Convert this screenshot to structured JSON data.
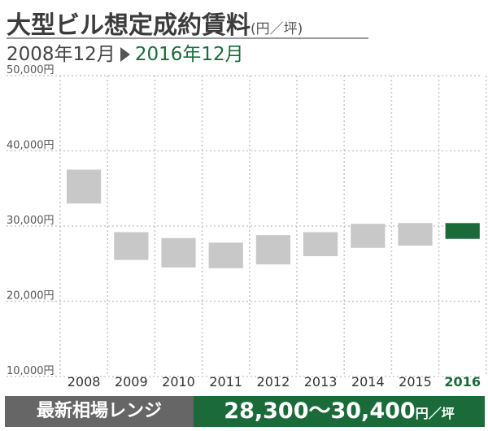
{
  "title": {
    "main": "大型ビル想定成約賃料",
    "unit": "(円／坪)"
  },
  "subtitle": {
    "from": "2008年12月",
    "to": "2016年12月"
  },
  "colors": {
    "range_box": "#c8c8c8",
    "highlight_box": "#1b6b3a",
    "highlight_label": "#1a6b3c",
    "grid": "#c9c9c9",
    "footer_left_bg": "#666666",
    "footer_right_bg": "#1b6b3a"
  },
  "chart_data": {
    "type": "bar",
    "categories": [
      "2008",
      "2009",
      "2010",
      "2011",
      "2012",
      "2013",
      "2014",
      "2015",
      "2016"
    ],
    "ranges": [
      [
        33000,
        37500
      ],
      [
        25500,
        29200
      ],
      [
        24500,
        28400
      ],
      [
        24400,
        27800
      ],
      [
        24900,
        28800
      ],
      [
        26000,
        29200
      ],
      [
        27100,
        30300
      ],
      [
        27400,
        30400
      ],
      [
        28300,
        30400
      ]
    ],
    "highlight_category": "2016",
    "y_ticks": [
      "10,000円",
      "20,000円",
      "30,000円",
      "40,000円",
      "50,000円"
    ],
    "ylim": [
      10000,
      50000
    ],
    "grid": true
  },
  "footer": {
    "label": "最新相場レンジ",
    "value": "28,300〜30,400",
    "unit": "円／坪"
  }
}
